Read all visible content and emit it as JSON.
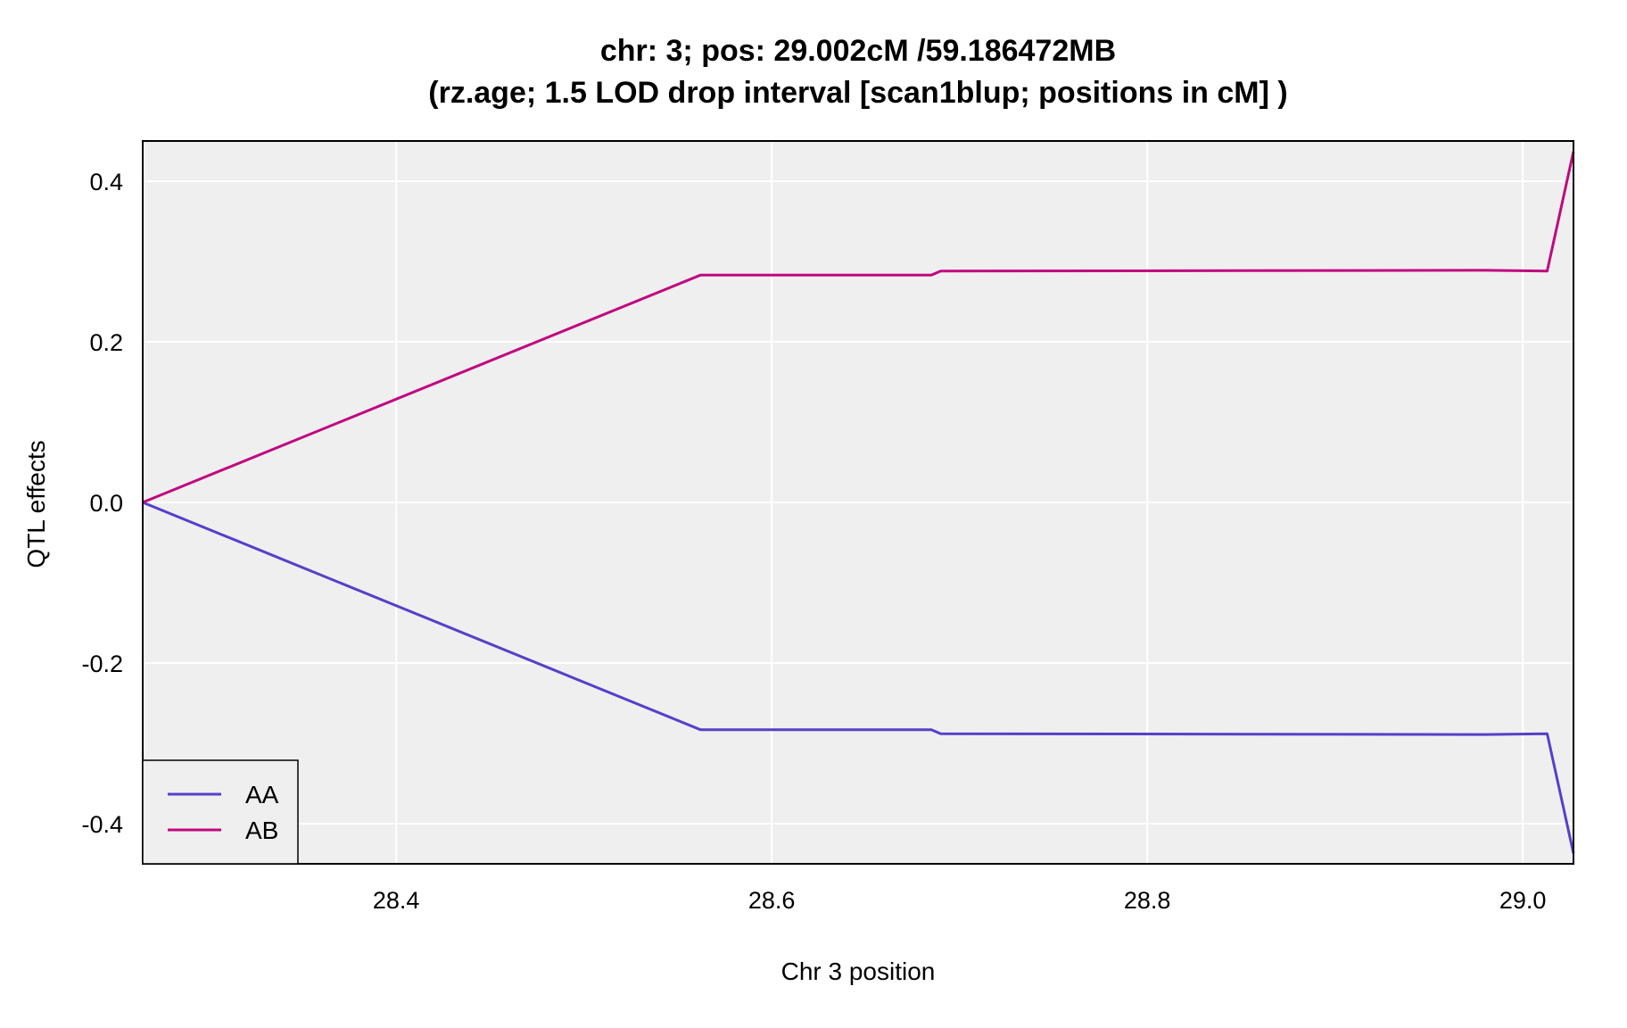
{
  "chart_data": {
    "type": "line",
    "title_line1": "chr: 3; pos: 29.002cM /59.186472MB",
    "title_line2": "(rz.age; 1.5 LOD drop interval [scan1blup; positions in cM] )",
    "xlabel": "Chr 3 position",
    "ylabel": "QTL effects",
    "xlim": [
      28.265,
      29.027
    ],
    "ylim": [
      -0.45,
      0.45
    ],
    "xticks": [
      28.4,
      28.6,
      28.8,
      29.0
    ],
    "xtick_labels": [
      "28.4",
      "28.6",
      "28.8",
      "29.0"
    ],
    "yticks": [
      0.4,
      0.2,
      0.0,
      -0.2,
      -0.4
    ],
    "ytick_labels": [
      "0.4",
      "0.2",
      "0.0",
      "-0.2",
      "-0.4"
    ],
    "grid": true,
    "legend_position": "bottom-left",
    "background_color": "#efefef",
    "series": [
      {
        "name": "AA",
        "color": "#5540c8",
        "x": [
          28.265,
          28.562,
          28.685,
          28.69,
          28.98,
          29.013,
          29.027
        ],
        "y": [
          0.0,
          -0.283,
          -0.283,
          -0.288,
          -0.289,
          -0.288,
          -0.437
        ]
      },
      {
        "name": "AB",
        "color": "#c0087f",
        "x": [
          28.265,
          28.562,
          28.685,
          28.69,
          28.98,
          29.013,
          29.027
        ],
        "y": [
          0.0,
          0.283,
          0.283,
          0.288,
          0.289,
          0.288,
          0.437
        ]
      }
    ]
  }
}
